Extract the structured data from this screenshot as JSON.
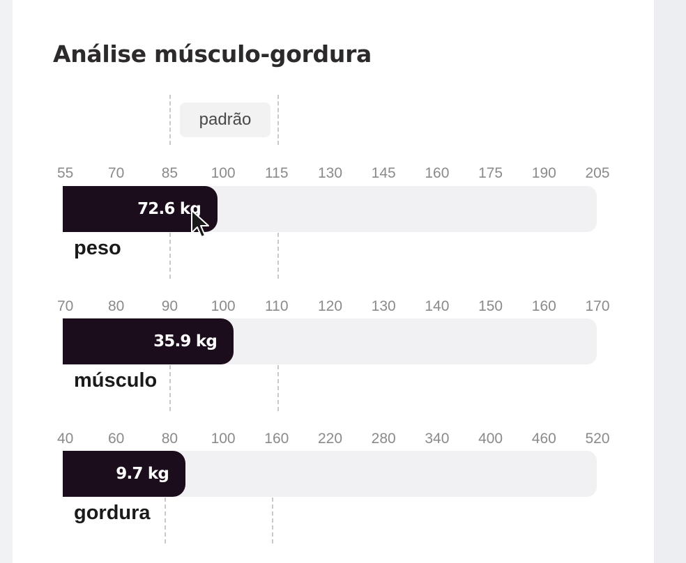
{
  "title": "Análise músculo-gordura",
  "standard_label": "padrão",
  "chart_data": {
    "type": "bar",
    "orientation": "horizontal",
    "title": "Análise músculo-gordura",
    "standard_range_label": "padrão",
    "bars": [
      {
        "label": "peso",
        "value": 72.6,
        "value_text": "72.6 kg",
        "unit": "kg",
        "ticks": [
          "55",
          "70",
          "85",
          "100",
          "115",
          "130",
          "145",
          "160",
          "175",
          "190",
          "205"
        ],
        "fill_fraction": 0.29
      },
      {
        "label": "músculo",
        "value": 35.9,
        "value_text": "35.9 kg",
        "unit": "kg",
        "ticks": [
          "70",
          "80",
          "90",
          "100",
          "110",
          "120",
          "130",
          "140",
          "150",
          "160",
          "170"
        ],
        "fill_fraction": 0.32
      },
      {
        "label": "gordura",
        "value": 9.7,
        "value_text": "9.7 kg",
        "unit": "kg",
        "ticks": [
          "40",
          "60",
          "80",
          "100",
          "160",
          "220",
          "280",
          "340",
          "400",
          "460",
          "520"
        ],
        "fill_fraction": 0.23
      }
    ],
    "colors": {
      "fill": "#1c0d1c",
      "track": "#f1f1f3",
      "standard_line": "#c9c9cc"
    }
  }
}
